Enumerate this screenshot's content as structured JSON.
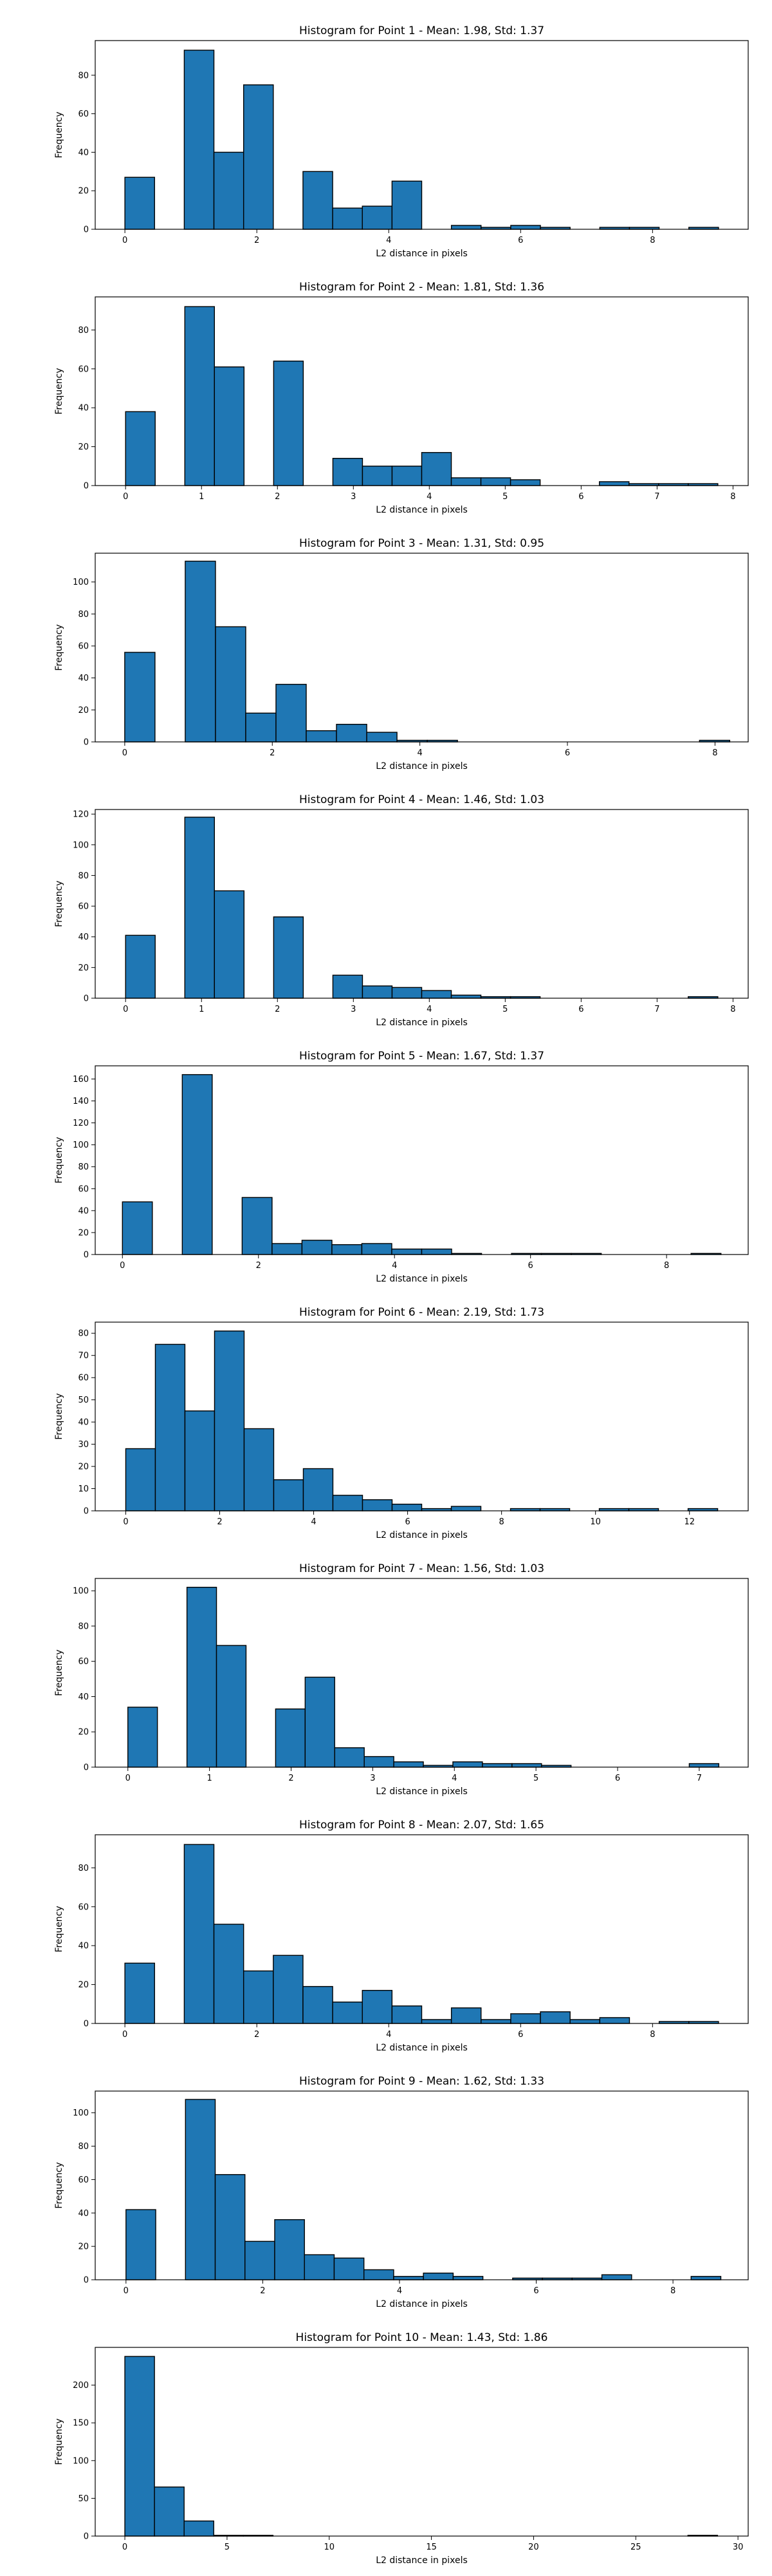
{
  "chart_data": [
    {
      "type": "bar",
      "title": "Histogram for Point 1 - Mean: 1.98, Std: 1.37",
      "xlabel": "L2 distance in pixels",
      "ylabel": "Frequency",
      "xlim": [
        -0.45,
        9.45
      ],
      "ylim": [
        0,
        98
      ],
      "xticks": [
        0,
        2,
        4,
        6,
        8
      ],
      "yticks": [
        0,
        20,
        40,
        60,
        80
      ],
      "bin_edges": [
        0,
        0.45,
        0.9,
        1.35,
        1.8,
        2.25,
        2.7,
        3.15,
        3.6,
        4.05,
        4.5,
        4.95,
        5.4,
        5.85,
        6.3,
        6.75,
        7.2,
        7.65,
        8.1,
        8.55,
        9
      ],
      "values": [
        27,
        0,
        93,
        40,
        75,
        0,
        30,
        11,
        12,
        25,
        0,
        2,
        1,
        2,
        1,
        0,
        1,
        1,
        0,
        1
      ]
    },
    {
      "type": "bar",
      "title": "Histogram for Point 2 - Mean: 1.81, Std: 1.36",
      "xlabel": "L2 distance in pixels",
      "ylabel": "Frequency",
      "xlim": [
        -0.4,
        8.2
      ],
      "ylim": [
        0,
        97
      ],
      "xticks": [
        0,
        1,
        2,
        3,
        4,
        5,
        6,
        7,
        8
      ],
      "yticks": [
        0,
        20,
        40,
        60,
        80
      ],
      "bin_edges": [
        0,
        0.39,
        0.78,
        1.17,
        1.56,
        1.95,
        2.34,
        2.73,
        3.12,
        3.51,
        3.9,
        4.29,
        4.68,
        5.07,
        5.46,
        5.85,
        6.24,
        6.63,
        7.02,
        7.41,
        7.8
      ],
      "values": [
        38,
        0,
        92,
        61,
        0,
        64,
        0,
        14,
        10,
        10,
        17,
        4,
        4,
        3,
        0,
        0,
        2,
        1,
        1,
        1
      ]
    },
    {
      "type": "bar",
      "title": "Histogram for Point 3 - Mean: 1.31, Std: 0.95",
      "xlabel": "L2 distance in pixels",
      "ylabel": "Frequency",
      "xlim": [
        -0.4,
        8.45
      ],
      "ylim": [
        0,
        118
      ],
      "xticks": [
        0,
        2,
        4,
        6,
        8
      ],
      "yticks": [
        0,
        20,
        40,
        60,
        80,
        100
      ],
      "bin_edges": [
        0,
        0.41,
        0.82,
        1.23,
        1.64,
        2.05,
        2.46,
        2.87,
        3.28,
        3.69,
        4.1,
        4.51,
        4.92,
        5.33,
        5.74,
        6.15,
        6.56,
        6.97,
        7.38,
        7.79,
        8.2
      ],
      "values": [
        56,
        0,
        113,
        72,
        18,
        36,
        7,
        11,
        6,
        1,
        1,
        0,
        0,
        0,
        0,
        0,
        0,
        0,
        0,
        1
      ]
    },
    {
      "type": "bar",
      "title": "Histogram for Point 4 - Mean: 1.46, Std: 1.03",
      "xlabel": "L2 distance in pixels",
      "ylabel": "Frequency",
      "xlim": [
        -0.4,
        8.2
      ],
      "ylim": [
        0,
        123
      ],
      "xticks": [
        0,
        1,
        2,
        3,
        4,
        5,
        6,
        7,
        8
      ],
      "yticks": [
        0,
        20,
        40,
        60,
        80,
        100,
        120
      ],
      "bin_edges": [
        0,
        0.39,
        0.78,
        1.17,
        1.56,
        1.95,
        2.34,
        2.73,
        3.12,
        3.51,
        3.9,
        4.29,
        4.68,
        5.07,
        5.46,
        5.85,
        6.24,
        6.63,
        7.02,
        7.41,
        7.8
      ],
      "values": [
        41,
        0,
        118,
        70,
        0,
        53,
        0,
        15,
        8,
        7,
        5,
        2,
        1,
        1,
        0,
        0,
        0,
        0,
        0,
        1
      ]
    },
    {
      "type": "bar",
      "title": "Histogram for Point 5 - Mean: 1.67, Std: 1.37",
      "xlabel": "L2 distance in pixels",
      "ylabel": "Frequency",
      "xlim": [
        -0.4,
        9.2
      ],
      "ylim": [
        0,
        172
      ],
      "xticks": [
        0,
        2,
        4,
        6,
        8
      ],
      "yticks": [
        0,
        20,
        40,
        60,
        80,
        100,
        120,
        140,
        160
      ],
      "bin_edges": [
        0,
        0.44,
        0.88,
        1.32,
        1.76,
        2.2,
        2.64,
        3.08,
        3.52,
        3.96,
        4.4,
        4.84,
        5.28,
        5.72,
        6.16,
        6.6,
        7.04,
        7.48,
        7.92,
        8.36,
        8.8
      ],
      "values": [
        48,
        0,
        164,
        0,
        52,
        10,
        13,
        9,
        10,
        5,
        5,
        1,
        0,
        1,
        1,
        1,
        0,
        0,
        0,
        1
      ]
    },
    {
      "type": "bar",
      "title": "Histogram for Point 6 - Mean: 2.19, Std: 1.73",
      "xlabel": "L2 distance in pixels",
      "ylabel": "Frequency",
      "xlim": [
        -0.65,
        13.25
      ],
      "ylim": [
        0,
        85
      ],
      "xticks": [
        0,
        2,
        4,
        6,
        8,
        10,
        12
      ],
      "yticks": [
        0,
        10,
        20,
        30,
        40,
        50,
        60,
        70,
        80
      ],
      "bin_edges": [
        0,
        0.63,
        1.26,
        1.89,
        2.52,
        3.15,
        3.78,
        4.41,
        5.04,
        5.67,
        6.3,
        6.93,
        7.56,
        8.19,
        8.82,
        9.45,
        10.08,
        10.71,
        11.34,
        11.97,
        12.6
      ],
      "values": [
        28,
        75,
        45,
        81,
        37,
        14,
        19,
        7,
        5,
        3,
        1,
        2,
        0,
        1,
        1,
        0,
        1,
        1,
        0,
        1
      ]
    },
    {
      "type": "bar",
      "title": "Histogram for Point 7 - Mean: 1.56, Std: 1.03",
      "xlabel": "L2 distance in pixels",
      "ylabel": "Frequency",
      "xlim": [
        -0.4,
        7.6
      ],
      "ylim": [
        0,
        107
      ],
      "xticks": [
        0,
        1,
        2,
        3,
        4,
        5,
        6,
        7
      ],
      "yticks": [
        0,
        20,
        40,
        60,
        80,
        100
      ],
      "bin_edges": [
        0,
        0.362,
        0.724,
        1.086,
        1.448,
        1.81,
        2.172,
        2.534,
        2.896,
        3.258,
        3.62,
        3.982,
        4.344,
        4.706,
        5.068,
        5.43,
        5.792,
        6.154,
        6.516,
        6.878,
        7.24
      ],
      "values": [
        34,
        0,
        102,
        69,
        0,
        33,
        51,
        11,
        6,
        3,
        1,
        3,
        2,
        2,
        1,
        0,
        0,
        0,
        0,
        2
      ]
    },
    {
      "type": "bar",
      "title": "Histogram for Point 8 - Mean: 2.07, Std: 1.65",
      "xlabel": "L2 distance in pixels",
      "ylabel": "Frequency",
      "xlim": [
        -0.45,
        9.45
      ],
      "ylim": [
        0,
        97
      ],
      "xticks": [
        0,
        2,
        4,
        6,
        8
      ],
      "yticks": [
        0,
        20,
        40,
        60,
        80
      ],
      "bin_edges": [
        0,
        0.45,
        0.9,
        1.35,
        1.8,
        2.25,
        2.7,
        3.15,
        3.6,
        4.05,
        4.5,
        4.95,
        5.4,
        5.85,
        6.3,
        6.75,
        7.2,
        7.65,
        8.1,
        8.55,
        9
      ],
      "values": [
        31,
        0,
        92,
        51,
        27,
        35,
        19,
        11,
        17,
        9,
        2,
        8,
        2,
        5,
        6,
        2,
        3,
        0,
        1,
        1
      ]
    },
    {
      "type": "bar",
      "title": "Histogram for Point 9 - Mean: 1.62, Std: 1.33",
      "xlabel": "L2 distance in pixels",
      "ylabel": "Frequency",
      "xlim": [
        -0.45,
        9.1
      ],
      "ylim": [
        0,
        113
      ],
      "xticks": [
        0,
        2,
        4,
        6,
        8
      ],
      "yticks": [
        0,
        20,
        40,
        60,
        80,
        100
      ],
      "bin_edges": [
        0,
        0.435,
        0.87,
        1.305,
        1.74,
        2.175,
        2.61,
        3.045,
        3.48,
        3.915,
        4.35,
        4.785,
        5.22,
        5.655,
        6.09,
        6.525,
        6.96,
        7.395,
        7.83,
        8.265,
        8.7
      ],
      "values": [
        42,
        0,
        108,
        63,
        23,
        36,
        15,
        13,
        6,
        2,
        4,
        2,
        0,
        1,
        1,
        1,
        3,
        0,
        0,
        2
      ]
    },
    {
      "type": "bar",
      "title": "Histogram for Point 10 - Mean: 1.43, Std: 1.86",
      "xlabel": "L2 distance in pixels",
      "ylabel": "Frequency",
      "xlim": [
        -1.45,
        30.5
      ],
      "ylim": [
        0,
        250
      ],
      "xticks": [
        0,
        5,
        10,
        15,
        20,
        25,
        30
      ],
      "yticks": [
        0,
        50,
        100,
        150,
        200
      ],
      "bin_edges": [
        0,
        1.45,
        2.9,
        4.35,
        5.8,
        7.25,
        8.7,
        10.15,
        11.6,
        13.05,
        14.5,
        15.95,
        17.4,
        18.85,
        20.3,
        21.75,
        23.2,
        24.65,
        26.1,
        27.55,
        29
      ],
      "values": [
        238,
        65,
        20,
        1,
        1,
        0,
        0,
        0,
        0,
        0,
        0,
        0,
        0,
        0,
        0,
        0,
        0,
        0,
        0,
        1
      ]
    }
  ]
}
